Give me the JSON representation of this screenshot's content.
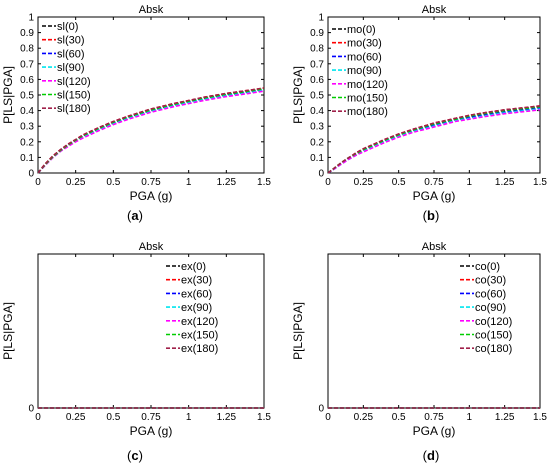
{
  "figure_caption_labels": [
    "(a)",
    "(b)",
    "(c)",
    "(d)"
  ],
  "chart_data": [
    {
      "type": "line",
      "title": "Absk",
      "xlabel": "PGA (g)",
      "ylabel": "P[LS|PGA]",
      "xlim": [
        0,
        1.5
      ],
      "ylim": [
        0,
        1
      ],
      "xticks": [
        0,
        0.25,
        0.5,
        0.75,
        1,
        1.25,
        1.5
      ],
      "xtick_labels": [
        "0",
        "0.25",
        "0.5",
        "0.75",
        "1",
        "1.25",
        "1.5"
      ],
      "yticks": [
        0,
        0.1,
        0.2,
        0.3,
        0.4,
        0.5,
        0.6,
        0.7,
        0.8,
        0.9,
        1
      ],
      "ytick_labels": [
        "0",
        "0.1",
        "0.2",
        "0.3",
        "0.4",
        "0.5",
        "0.6",
        "0.7",
        "0.8",
        "0.9",
        "1"
      ],
      "grid": false,
      "legend_position": "top-left",
      "x": [
        0,
        0.05,
        0.1,
        0.15,
        0.2,
        0.25,
        0.3,
        0.4,
        0.5,
        0.6,
        0.75,
        0.9,
        1.0,
        1.1,
        1.25,
        1.4,
        1.5
      ],
      "series": [
        {
          "name": "sl(0)",
          "color": "#000000",
          "values": [
            0,
            0.06,
            0.11,
            0.15,
            0.18,
            0.21,
            0.24,
            0.28,
            0.32,
            0.36,
            0.4,
            0.44,
            0.46,
            0.48,
            0.505,
            0.525,
            0.54
          ]
        },
        {
          "name": "sl(30)",
          "color": "#ff0000",
          "values": [
            0,
            0.06,
            0.11,
            0.15,
            0.185,
            0.215,
            0.245,
            0.29,
            0.33,
            0.365,
            0.41,
            0.445,
            0.465,
            0.485,
            0.51,
            0.53,
            0.545
          ]
        },
        {
          "name": "sl(60)",
          "color": "#0000ff",
          "values": [
            0,
            0.055,
            0.105,
            0.145,
            0.18,
            0.21,
            0.235,
            0.28,
            0.32,
            0.355,
            0.4,
            0.435,
            0.455,
            0.475,
            0.5,
            0.52,
            0.535
          ]
        },
        {
          "name": "sl(90)",
          "color": "#00e5ee",
          "values": [
            0,
            0.055,
            0.1,
            0.14,
            0.175,
            0.205,
            0.23,
            0.275,
            0.315,
            0.35,
            0.395,
            0.43,
            0.45,
            0.47,
            0.495,
            0.515,
            0.53
          ]
        },
        {
          "name": "sl(120)",
          "color": "#ff00ff",
          "values": [
            0,
            0.05,
            0.1,
            0.14,
            0.17,
            0.2,
            0.225,
            0.27,
            0.31,
            0.345,
            0.39,
            0.425,
            0.445,
            0.465,
            0.49,
            0.51,
            0.525
          ]
        },
        {
          "name": "sl(150)",
          "color": "#00cc00",
          "values": [
            0,
            0.055,
            0.105,
            0.145,
            0.18,
            0.21,
            0.24,
            0.285,
            0.325,
            0.36,
            0.405,
            0.44,
            0.46,
            0.48,
            0.505,
            0.525,
            0.54
          ]
        },
        {
          "name": "sl(180)",
          "color": "#a0204a",
          "values": [
            0,
            0.06,
            0.11,
            0.15,
            0.185,
            0.215,
            0.245,
            0.29,
            0.33,
            0.365,
            0.41,
            0.445,
            0.465,
            0.485,
            0.51,
            0.53,
            0.545
          ]
        }
      ]
    },
    {
      "type": "line",
      "title": "Absk",
      "xlabel": "PGA (g)",
      "ylabel": "P[LS|PGA]",
      "xlim": [
        0,
        1.5
      ],
      "ylim": [
        0,
        1
      ],
      "xticks": [
        0,
        0.25,
        0.5,
        0.75,
        1,
        1.25,
        1.5
      ],
      "xtick_labels": [
        "0",
        "0.25",
        "0.5",
        "0.75",
        "1",
        "1.25",
        "1.5"
      ],
      "yticks": [
        0,
        0.1,
        0.2,
        0.3,
        0.4,
        0.5,
        0.6,
        0.7,
        0.8,
        0.9,
        1
      ],
      "ytick_labels": [
        "0",
        "0.1",
        "0.2",
        "0.3",
        "0.4",
        "0.5",
        "0.6",
        "0.7",
        "0.8",
        "0.9",
        "1"
      ],
      "grid": false,
      "legend_position": "top-left",
      "x": [
        0,
        0.05,
        0.1,
        0.15,
        0.2,
        0.25,
        0.3,
        0.4,
        0.5,
        0.6,
        0.75,
        0.9,
        1.0,
        1.1,
        1.25,
        1.4,
        1.5
      ],
      "series": [
        {
          "name": "mo(0)",
          "color": "#000000",
          "values": [
            0,
            0.035,
            0.07,
            0.1,
            0.125,
            0.15,
            0.17,
            0.21,
            0.245,
            0.275,
            0.31,
            0.345,
            0.36,
            0.38,
            0.4,
            0.415,
            0.425
          ]
        },
        {
          "name": "mo(30)",
          "color": "#ff0000",
          "values": [
            0,
            0.035,
            0.07,
            0.1,
            0.13,
            0.155,
            0.175,
            0.215,
            0.25,
            0.28,
            0.32,
            0.35,
            0.37,
            0.385,
            0.405,
            0.42,
            0.43
          ]
        },
        {
          "name": "mo(60)",
          "color": "#0000ff",
          "values": [
            0,
            0.03,
            0.065,
            0.095,
            0.12,
            0.145,
            0.165,
            0.205,
            0.24,
            0.27,
            0.305,
            0.34,
            0.355,
            0.37,
            0.39,
            0.405,
            0.415
          ]
        },
        {
          "name": "mo(90)",
          "color": "#00e5ee",
          "values": [
            0,
            0.03,
            0.06,
            0.09,
            0.115,
            0.14,
            0.16,
            0.2,
            0.235,
            0.265,
            0.3,
            0.335,
            0.35,
            0.365,
            0.385,
            0.4,
            0.41
          ]
        },
        {
          "name": "mo(120)",
          "color": "#ff00ff",
          "values": [
            0,
            0.03,
            0.06,
            0.09,
            0.115,
            0.135,
            0.155,
            0.195,
            0.23,
            0.26,
            0.295,
            0.33,
            0.345,
            0.36,
            0.38,
            0.395,
            0.405
          ]
        },
        {
          "name": "mo(150)",
          "color": "#00cc00",
          "values": [
            0,
            0.035,
            0.07,
            0.1,
            0.125,
            0.15,
            0.17,
            0.21,
            0.245,
            0.275,
            0.315,
            0.345,
            0.365,
            0.38,
            0.4,
            0.415,
            0.425
          ]
        },
        {
          "name": "mo(180)",
          "color": "#a0204a",
          "values": [
            0,
            0.035,
            0.07,
            0.1,
            0.13,
            0.155,
            0.175,
            0.215,
            0.25,
            0.28,
            0.32,
            0.35,
            0.37,
            0.385,
            0.405,
            0.42,
            0.43
          ]
        }
      ]
    },
    {
      "type": "line",
      "title": "Absk",
      "xlabel": "PGA (g)",
      "ylabel": "P[LS|PGA]",
      "xlim": [
        0,
        1.5
      ],
      "ylim": [
        0,
        1
      ],
      "xticks": [
        0,
        0.25,
        0.5,
        0.75,
        1,
        1.25,
        1.5
      ],
      "xtick_labels": [
        "0",
        "0.25",
        "0.5",
        "0.75",
        "1",
        "1.25",
        "1.5"
      ],
      "yticks": [
        0
      ],
      "ytick_labels": [
        "0"
      ],
      "grid": false,
      "legend_position": "top-right",
      "x": [
        0,
        1.5
      ],
      "series": [
        {
          "name": "ex(0)",
          "color": "#000000",
          "values": [
            0,
            0
          ]
        },
        {
          "name": "ex(30)",
          "color": "#ff0000",
          "values": [
            0,
            0
          ]
        },
        {
          "name": "ex(60)",
          "color": "#0000ff",
          "values": [
            0,
            0
          ]
        },
        {
          "name": "ex(90)",
          "color": "#00e5ee",
          "values": [
            0,
            0
          ]
        },
        {
          "name": "ex(120)",
          "color": "#ff00ff",
          "values": [
            0,
            0
          ]
        },
        {
          "name": "ex(150)",
          "color": "#00cc00",
          "values": [
            0,
            0
          ]
        },
        {
          "name": "ex(180)",
          "color": "#a0204a",
          "values": [
            0,
            0
          ]
        }
      ]
    },
    {
      "type": "line",
      "title": "Absk",
      "xlabel": "PGA (g)",
      "ylabel": "P[LS|PGA]",
      "xlim": [
        0,
        1.5
      ],
      "ylim": [
        0,
        1
      ],
      "xticks": [
        0,
        0.25,
        0.5,
        0.75,
        1,
        1.25,
        1.5
      ],
      "xtick_labels": [
        "0",
        "0.25",
        "0.5",
        "0.75",
        "1",
        "1.25",
        "1.5"
      ],
      "yticks": [
        0
      ],
      "ytick_labels": [
        "0"
      ],
      "grid": false,
      "legend_position": "top-right",
      "x": [
        0,
        1.5
      ],
      "series": [
        {
          "name": "co(0)",
          "color": "#000000",
          "values": [
            0,
            0
          ]
        },
        {
          "name": "co(30)",
          "color": "#ff0000",
          "values": [
            0,
            0
          ]
        },
        {
          "name": "co(60)",
          "color": "#0000ff",
          "values": [
            0,
            0
          ]
        },
        {
          "name": "co(90)",
          "color": "#00e5ee",
          "values": [
            0,
            0
          ]
        },
        {
          "name": "co(120)",
          "color": "#ff00ff",
          "values": [
            0,
            0
          ]
        },
        {
          "name": "co(150)",
          "color": "#00cc00",
          "values": [
            0,
            0
          ]
        },
        {
          "name": "co(180)",
          "color": "#a0204a",
          "values": [
            0,
            0
          ]
        }
      ]
    }
  ]
}
